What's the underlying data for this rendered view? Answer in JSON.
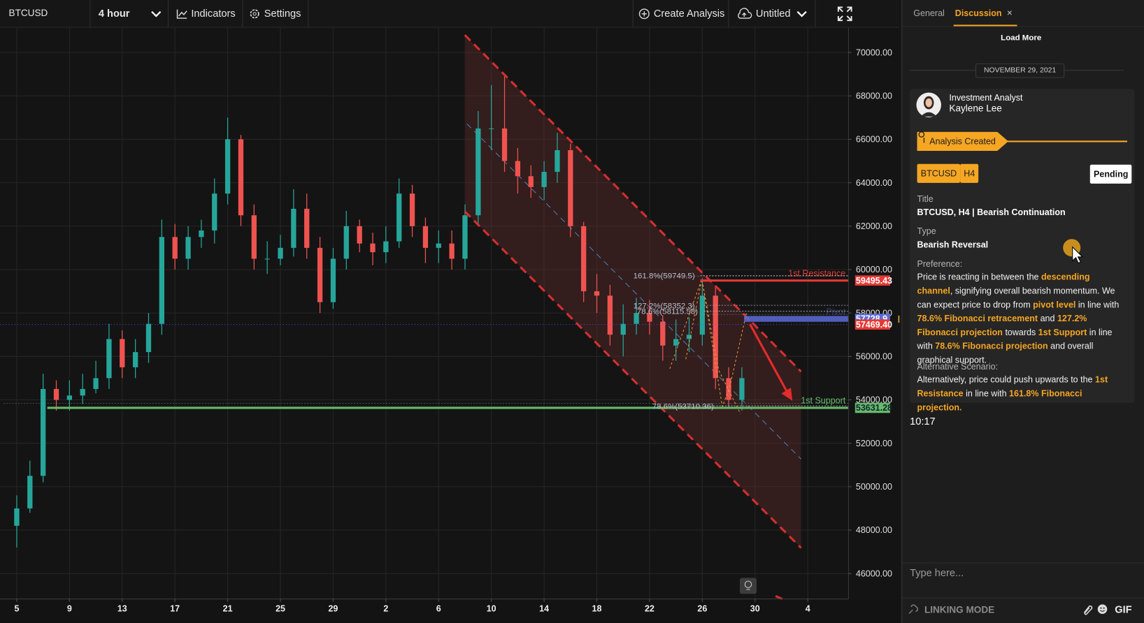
{
  "toolbar": {
    "symbol": "BTCUSD",
    "interval": "4 hour",
    "indicators": "Indicators",
    "settings": "Settings",
    "create": "Create Analysis",
    "layout": "Untitled"
  },
  "chart_data": {
    "type": "candlestick",
    "x": [
      0,
      1,
      2,
      3,
      4,
      5,
      6,
      7,
      8,
      9,
      10,
      11,
      12,
      13,
      14,
      15,
      16,
      17,
      18,
      19,
      20,
      21,
      22,
      23,
      24,
      25,
      26,
      27,
      28,
      29,
      30,
      31,
      32,
      33,
      34,
      35,
      36,
      37,
      38,
      39,
      40,
      41,
      42,
      43,
      44,
      45,
      46,
      47,
      48,
      49,
      50,
      51,
      52,
      53,
      54,
      55
    ],
    "open": [
      48200,
      49000,
      50500,
      54500,
      54000,
      54200,
      54500,
      55000,
      56800,
      55500,
      56200,
      57500,
      61500,
      60500,
      61500,
      61800,
      63500,
      66000,
      62500,
      60500,
      60500,
      61000,
      62800,
      61000,
      58500,
      60500,
      62000,
      61200,
      60800,
      61300,
      63500,
      62000,
      61000,
      61200,
      60500,
      62500,
      66500,
      66500,
      65000,
      64300,
      63800,
      64500,
      65500,
      62000,
      59000,
      58800,
      57000,
      57500,
      58000,
      57600,
      56500,
      56800,
      57000,
      58800,
      55000,
      54000
    ],
    "high": [
      49600,
      51200,
      55200,
      54900,
      54900,
      55200,
      55800,
      57500,
      57200,
      56800,
      58000,
      62300,
      62100,
      62000,
      62300,
      64200,
      67000,
      66200,
      63000,
      61300,
      61600,
      63700,
      63500,
      61500,
      61000,
      62700,
      62300,
      61700,
      62000,
      64200,
      63900,
      62400,
      61800,
      61800,
      63000,
      67300,
      68500,
      69000,
      65600,
      64800,
      65000,
      66300,
      65800,
      62200,
      59800,
      59300,
      58400,
      58700,
      58600,
      57900,
      57700,
      57800,
      59600,
      59200,
      55500,
      55500
    ],
    "low": [
      47200,
      48800,
      50200,
      53500,
      53500,
      53800,
      54300,
      54500,
      55000,
      55000,
      55700,
      57000,
      60000,
      60000,
      61000,
      61200,
      63000,
      62000,
      60000,
      59800,
      60200,
      60600,
      60500,
      58000,
      58200,
      60000,
      60800,
      60200,
      60300,
      61000,
      61500,
      60300,
      60300,
      60000,
      60000,
      62000,
      65500,
      64500,
      63500,
      63300,
      63200,
      64000,
      61500,
      58500,
      58000,
      56500,
      56000,
      57000,
      57000,
      55800,
      55800,
      56200,
      56500,
      54500,
      53600,
      53500
    ],
    "close": [
      49000,
      50500,
      54500,
      54000,
      54200,
      54500,
      55000,
      56800,
      55500,
      56200,
      57500,
      61500,
      60500,
      61500,
      61800,
      63500,
      66000,
      62500,
      60500,
      60500,
      61000,
      62800,
      61000,
      58500,
      60500,
      62000,
      61200,
      60800,
      61300,
      63500,
      62000,
      61000,
      61200,
      60500,
      62500,
      66500,
      66500,
      65000,
      64300,
      63800,
      64500,
      65500,
      62000,
      59000,
      58800,
      57000,
      57500,
      58000,
      57600,
      56500,
      56800,
      57000,
      58800,
      55000,
      54000,
      55000
    ],
    "up_color": "#26a69a",
    "down_color": "#ef5350",
    "xlim": [
      -1.27,
      63.09
    ],
    "xticks": [
      {
        "value": 0,
        "label": "5"
      },
      {
        "value": 4,
        "label": "9"
      },
      {
        "value": 8,
        "label": "13"
      },
      {
        "value": 12,
        "label": "17"
      },
      {
        "value": 16,
        "label": "21"
      },
      {
        "value": 20,
        "label": "25"
      },
      {
        "value": 24,
        "label": "29"
      },
      {
        "value": 28,
        "label": "2"
      },
      {
        "value": 32,
        "label": "6"
      },
      {
        "value": 36,
        "label": "10"
      },
      {
        "value": 40,
        "label": "14"
      },
      {
        "value": 44,
        "label": "18"
      },
      {
        "value": 48,
        "label": "22"
      },
      {
        "value": 52,
        "label": "26"
      },
      {
        "value": 56,
        "label": "30"
      },
      {
        "value": 60,
        "label": "4"
      }
    ],
    "ylim": [
      44830,
      71140
    ],
    "yticks": [
      {
        "value": 46000,
        "label": "46000.00"
      },
      {
        "value": 48000,
        "label": "48000.00"
      },
      {
        "value": 50000,
        "label": "50000.00"
      },
      {
        "value": 52000,
        "label": "52000.00"
      },
      {
        "value": 54000,
        "label": "54000.00"
      },
      {
        "value": 56000,
        "label": "56000.00"
      },
      {
        "value": 58000,
        "label": "58000.00"
      },
      {
        "value": 60000,
        "label": "60000.00"
      },
      {
        "value": 62000,
        "label": "62000.00"
      },
      {
        "value": 64000,
        "label": "64000.00"
      },
      {
        "value": 66000,
        "label": "66000.00"
      },
      {
        "value": 68000,
        "label": "68000.00"
      },
      {
        "value": 70000,
        "label": "70000.00"
      }
    ],
    "grid": true,
    "last_price": {
      "value": 57469.4,
      "label": "57469.40"
    },
    "levels": [
      {
        "label": "1st Resistance",
        "price": 59495.43,
        "x_from": 51.85,
        "color": "#e53935"
      },
      {
        "label": "Pivot",
        "price": 57728.9,
        "x_from": 55.17,
        "color": "#5c6bd6"
      },
      {
        "label": "1st Support",
        "price": 53631.28,
        "x_from": 2.32,
        "color": "#66bb6a"
      }
    ],
    "fib_labels": [
      "161.8%(59749.5)",
      "127.2%(58352.3)",
      "78.6%(58115.58)",
      "78.6%(53710.36)"
    ]
  },
  "panel": {
    "tabs": [
      "General",
      "Discussion"
    ],
    "close": "×",
    "load_more": "Load More",
    "date": "NOVEMBER 29, 2021",
    "author_role": "Investment Analyst",
    "author_name": "Kaylene Lee",
    "status": "Analysis Created",
    "tags": [
      "BTCUSD",
      "H4"
    ],
    "badge": "Pending",
    "title_label": "Title",
    "title_value": "BTCUSD, H4 | Bearish Continuation",
    "type_label": "Type",
    "type_value": "Bearish Reversal",
    "preference_label": "Preference:",
    "preference": [
      {
        "text": "Price is reacting in between the "
      },
      {
        "text": "descending channel",
        "highlight": true
      },
      {
        "text": ", signifying overall bearish momentum. We can expect price to drop from "
      },
      {
        "text": "pivot level",
        "highlight": true
      },
      {
        "text": " in line with "
      },
      {
        "text": "78.6% Fibonacci retracement",
        "highlight": true
      },
      {
        "text": " and "
      },
      {
        "text": "127.2% Fibonacci projection",
        "highlight": true
      },
      {
        "text": " towards "
      },
      {
        "text": "1st Support",
        "highlight": true
      },
      {
        "text": " in line with "
      },
      {
        "text": "78.6% Fibonacci projection",
        "highlight": true
      },
      {
        "text": " and overall graphical support."
      }
    ],
    "alternative_label": "Alternative Scenario:",
    "alternative": [
      {
        "text": "Alternatively, price could push upwards to the "
      },
      {
        "text": "1st Resistance",
        "highlight": true
      },
      {
        "text": " in line with "
      },
      {
        "text": "161.8% Fibonacci projection.",
        "highlight": true
      }
    ],
    "time": "10:17",
    "input_placeholder": "Type here...",
    "linking": "LINKING MODE",
    "gif": "GIF"
  }
}
